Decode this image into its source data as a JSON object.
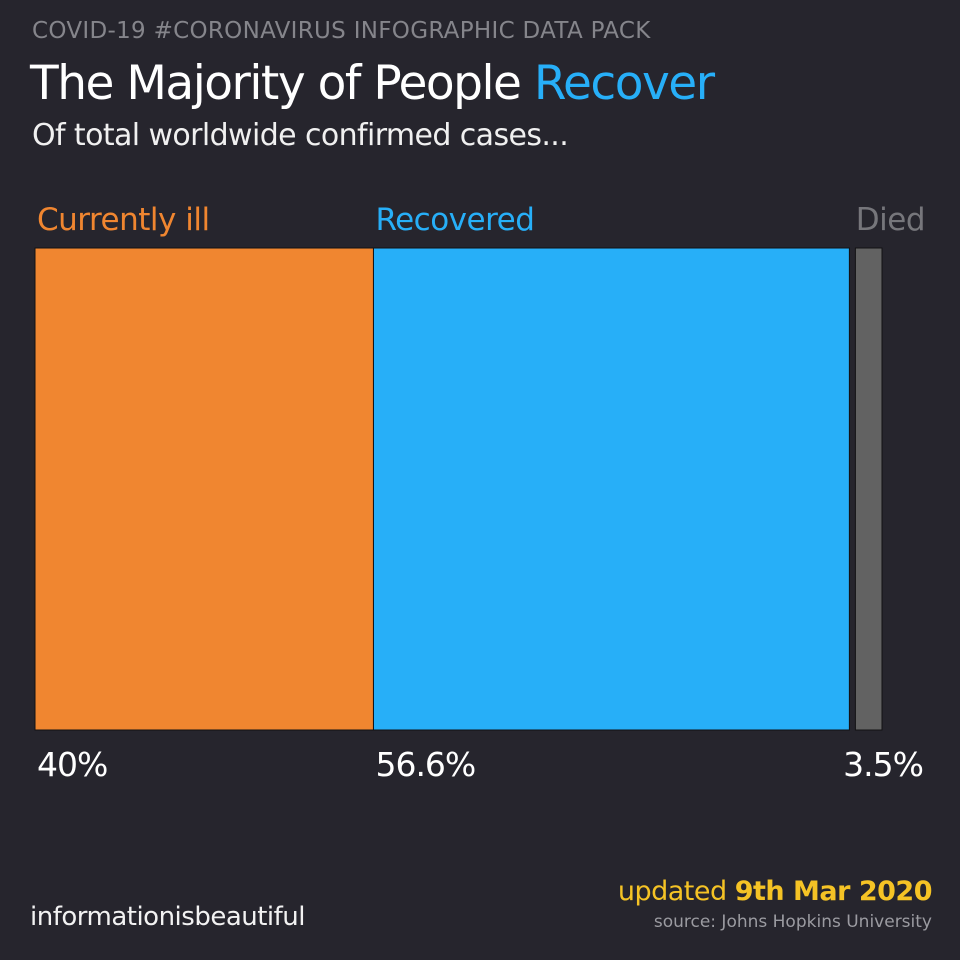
{
  "header": {
    "kicker": "COVID-19 #CORONAVIRUS INFOGRAPHIC DATA PACK",
    "title_main": "The Majority of People ",
    "title_accent": "Recover",
    "subtitle": "Of total worldwide confirmed cases..."
  },
  "chart_data": {
    "type": "bar",
    "orientation": "stacked-horizontal",
    "categories": [
      "Currently ill",
      "Recovered",
      "Died"
    ],
    "values": [
      40,
      56.6,
      3.5
    ],
    "value_labels": [
      "40%",
      "56.6%",
      "3.5%"
    ],
    "colors": [
      "#f08630",
      "#27aff8",
      "#626262"
    ],
    "title": "The Majority of People Recover",
    "subtitle": "Of total worldwide confirmed cases...",
    "xlabel": "",
    "ylabel": "",
    "grid": false,
    "legend": "none"
  },
  "footer": {
    "brand": "informationisbeautiful",
    "updated_prefix": "updated ",
    "updated_date": "9th Mar 2020",
    "source": "source: Johns Hopkins University"
  },
  "colors": {
    "background": "#26252d",
    "accent": "#27aff8",
    "updated": "#f5c325"
  }
}
